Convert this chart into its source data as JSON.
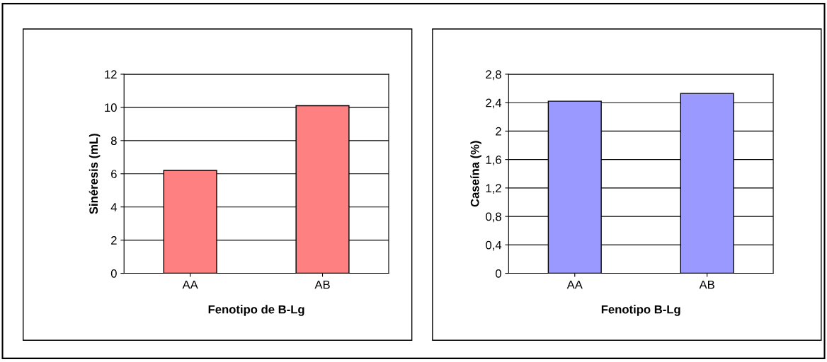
{
  "chart_data": [
    {
      "type": "bar",
      "xlabel": "Fenotipo de B-Lg",
      "ylabel": "Sinéresis (mL)",
      "categories": [
        "AA",
        "AB"
      ],
      "values": [
        6.2,
        10.1
      ],
      "color": "#ff8080",
      "ylim": [
        0,
        12
      ],
      "yticks": [
        0,
        2,
        4,
        6,
        8,
        10,
        12
      ],
      "grid": "y"
    },
    {
      "type": "bar",
      "xlabel": "Fenotipo B-Lg",
      "ylabel": "Caseína (%)",
      "categories": [
        "AA",
        "AB"
      ],
      "values": [
        2.42,
        2.53
      ],
      "color": "#9999ff",
      "ylim": [
        0,
        2.8
      ],
      "yticks": [
        0,
        {
          "value": 0.4,
          "label": "0,4"
        },
        {
          "value": 0.8,
          "label": "0,8"
        },
        {
          "value": 1.2,
          "label": "1,2"
        },
        {
          "value": 1.6,
          "label": "1,6"
        },
        2,
        {
          "value": 2.4,
          "label": "2,4"
        },
        {
          "value": 2.8,
          "label": "2,8"
        }
      ],
      "grid": "y"
    }
  ]
}
